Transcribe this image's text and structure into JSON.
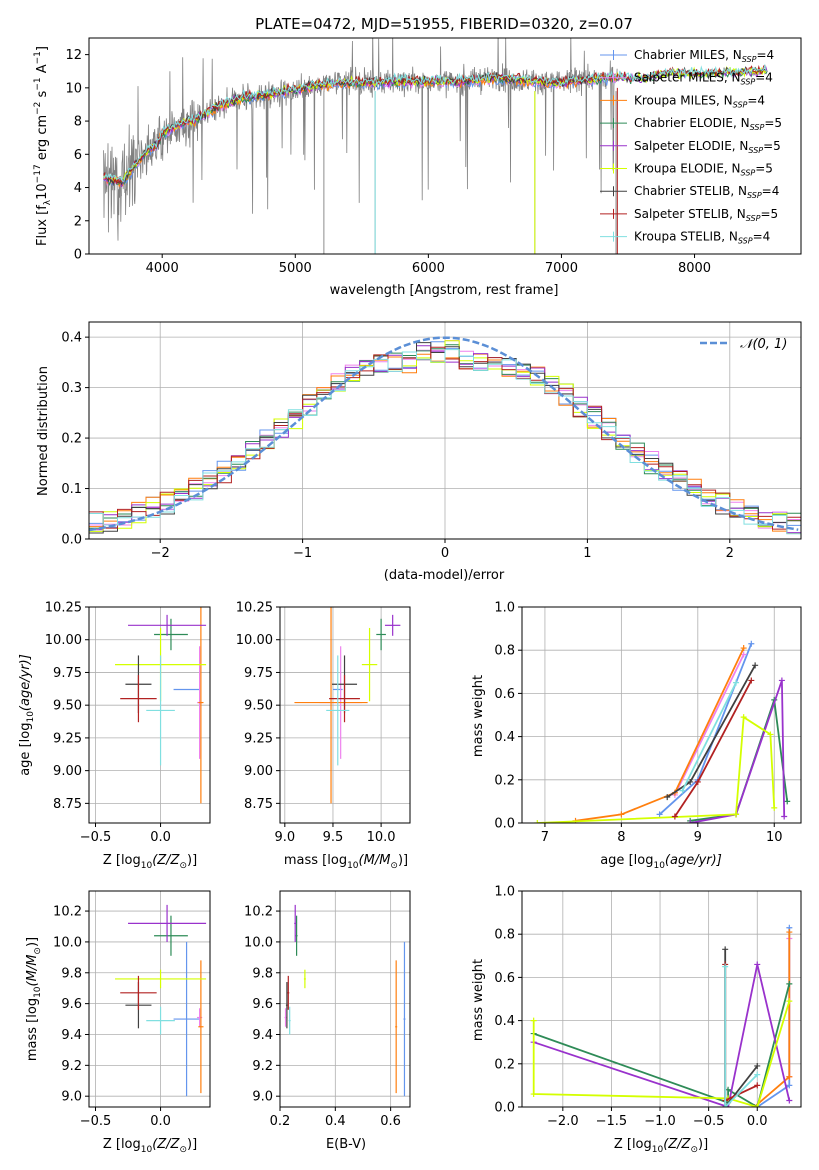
{
  "title": "PLATE=0472, MJD=51955, FIBERID=0320, z=0.07",
  "colors": {
    "chab_miles": "#6495ed",
    "salp_miles": "#ee82ee",
    "krou_miles": "#ff7f0e",
    "chab_elodie": "#2e8b57",
    "salp_elodie": "#9932cc",
    "krou_elodie": "#d4ff00",
    "chab_stelib": "#404040",
    "salp_stelib": "#b22222",
    "krou_stelib": "#80dfe0",
    "data": "#808080",
    "normal": "#5b8fd6"
  },
  "legend_spectrum": [
    {
      "key": "chab_miles",
      "label": "Chabrier MILES, N",
      "sub": "SSP",
      "tail": "=4"
    },
    {
      "key": "salp_miles",
      "label": "Salpeter MILES, N",
      "sub": "SSP",
      "tail": "=4"
    },
    {
      "key": "krou_miles",
      "label": "Kroupa MILES, N",
      "sub": "SSP",
      "tail": "=4"
    },
    {
      "key": "chab_elodie",
      "label": "Chabrier ELODIE, N",
      "sub": "SSP",
      "tail": "=5"
    },
    {
      "key": "salp_elodie",
      "label": "Salpeter ELODIE, N",
      "sub": "SSP",
      "tail": "=5"
    },
    {
      "key": "krou_elodie",
      "label": "Kroupa ELODIE, N",
      "sub": "SSP",
      "tail": "=5"
    },
    {
      "key": "chab_stelib",
      "label": "Chabrier STELIB, N",
      "sub": "SSP",
      "tail": "=4"
    },
    {
      "key": "salp_stelib",
      "label": "Salpeter STELIB, N",
      "sub": "SSP",
      "tail": "=5"
    },
    {
      "key": "krou_stelib",
      "label": "Kroupa STELIB, N",
      "sub": "SSP",
      "tail": "=4"
    }
  ],
  "chart_data": [
    {
      "id": "spectrum",
      "type": "line",
      "title": "PLATE=0472, MJD=51955, FIBERID=0320, z=0.07",
      "xlabel": "wavelength [Angstrom, rest frame]",
      "ylabel": "Flux [f",
      "ylabel_parts": [
        "Flux [f",
        "λ",
        "10",
        "−17",
        " erg cm",
        "−2",
        " s",
        "−1",
        " A",
        "−1",
        "]"
      ],
      "xlim": [
        3450,
        8800
      ],
      "ylim": [
        0,
        13
      ],
      "xticks": [
        4000,
        5000,
        6000,
        7000,
        8000
      ],
      "yticks": [
        0,
        2,
        4,
        6,
        8,
        10,
        12
      ],
      "continuum": [
        [
          3560,
          4.6
        ],
        [
          3700,
          4.3
        ],
        [
          3800,
          5.4
        ],
        [
          3900,
          6.3
        ],
        [
          3960,
          6.5
        ],
        [
          4000,
          7.3
        ],
        [
          4100,
          7.7
        ],
        [
          4250,
          8.1
        ],
        [
          4400,
          8.8
        ],
        [
          4600,
          9.4
        ],
        [
          4800,
          9.6
        ],
        [
          5000,
          9.9
        ],
        [
          5200,
          10.2
        ],
        [
          5400,
          10.3
        ],
        [
          5600,
          10.3
        ],
        [
          5800,
          10.4
        ],
        [
          6000,
          10.4
        ],
        [
          6200,
          10.35
        ],
        [
          6500,
          10.6
        ],
        [
          6800,
          10.4
        ],
        [
          7000,
          10.3
        ],
        [
          7200,
          10.5
        ],
        [
          7400,
          10.6
        ],
        [
          7600,
          10.5
        ],
        [
          7800,
          10.9
        ],
        [
          8000,
          10.8
        ],
        [
          8200,
          10.9
        ],
        [
          8400,
          10.9
        ],
        [
          8500,
          11.0
        ]
      ],
      "data_range": [
        3560,
        7420
      ],
      "grid": false,
      "legend_position": "right"
    },
    {
      "id": "residuals",
      "type": "line",
      "xlabel": "(data-model)/error",
      "ylabel": "Normed distribution",
      "xlim": [
        -2.5,
        2.5
      ],
      "ylim": [
        0,
        0.43
      ],
      "xticks": [
        -2,
        -1,
        0,
        1,
        2
      ],
      "yticks": [
        0.0,
        0.1,
        0.2,
        0.3,
        0.4
      ],
      "normal_legend": "𝒩(0, 1)",
      "bin_width": 0.1,
      "grid": true,
      "legend_position": "top-right"
    },
    {
      "id": "age_vs_z",
      "type": "scatter",
      "xlabel": "Z [log",
      "xlabel_parts": [
        "Z [log",
        "10",
        "(Z/Z",
        "⊙",
        ")]"
      ],
      "ylabel_parts": [
        "age  [log",
        "10",
        "(age/yr)]"
      ],
      "xlim": [
        -0.55,
        0.38
      ],
      "ylim": [
        8.6,
        10.25
      ],
      "xticks": [
        -0.5,
        0.0
      ],
      "yticks": [
        8.75,
        9.0,
        9.25,
        9.5,
        9.75,
        10.0,
        10.25
      ],
      "grid": true
    },
    {
      "id": "age_vs_mass",
      "type": "scatter",
      "xlabel_parts": [
        "mass [log",
        "10",
        "(M/M",
        "⊙",
        ")]"
      ],
      "xlim": [
        8.95,
        10.3
      ],
      "ylim": [
        8.6,
        10.25
      ],
      "xticks": [
        9.0,
        9.5,
        10.0
      ],
      "yticks": [
        8.75,
        9.0,
        9.25,
        9.5,
        9.75,
        10.0,
        10.25
      ],
      "grid": true
    },
    {
      "id": "weight_vs_age",
      "type": "line",
      "xlabel_parts": [
        "age  [log",
        "10",
        "(age/yr)]"
      ],
      "ylabel": "mass weight",
      "xlim": [
        6.7,
        10.35
      ],
      "ylim": [
        0,
        1.0
      ],
      "xticks": [
        7,
        8,
        9,
        10
      ],
      "yticks": [
        0.0,
        0.2,
        0.4,
        0.6,
        0.8,
        1.0
      ],
      "grid": true
    },
    {
      "id": "mass_vs_z",
      "type": "scatter",
      "xlabel_parts": [
        "Z [log",
        "10",
        "(Z/Z",
        "⊙",
        ")]"
      ],
      "ylabel_parts": [
        "mass [log",
        "10",
        "(M/M",
        "⊙",
        ")]"
      ],
      "xlim": [
        -0.55,
        0.38
      ],
      "ylim": [
        8.93,
        10.33
      ],
      "xticks": [
        -0.5,
        0.0
      ],
      "yticks": [
        9.0,
        9.2,
        9.4,
        9.6,
        9.8,
        10.0,
        10.2
      ],
      "grid": true
    },
    {
      "id": "mass_vs_ebv",
      "type": "scatter",
      "xlabel": "E(B-V)",
      "xlim": [
        0.2,
        0.67
      ],
      "ylim": [
        8.93,
        10.33
      ],
      "xticks": [
        0.2,
        0.4,
        0.6
      ],
      "yticks": [
        9.0,
        9.2,
        9.4,
        9.6,
        9.8,
        10.0,
        10.2
      ],
      "grid": true
    },
    {
      "id": "weight_vs_z",
      "type": "line",
      "xlabel_parts": [
        "Z [log",
        "10",
        "(Z/Z",
        "⊙",
        ")]"
      ],
      "ylabel": "mass weight",
      "xlim": [
        -2.42,
        0.45
      ],
      "ylim": [
        0,
        1.0
      ],
      "xticks": [
        -2.0,
        -1.5,
        -1.0,
        -0.5,
        0.0
      ],
      "yticks": [
        0.0,
        0.2,
        0.4,
        0.6,
        0.8,
        1.0
      ],
      "grid": true
    }
  ],
  "models": {
    "chab_miles": {
      "Z": [
        0.13,
        0.22
      ],
      "age": [
        9.62,
        0.0
      ],
      "mass": [
        9.5,
        0.0
      ],
      "mass_v": [
        9.51,
        0.48
      ],
      "ebv": [
        0.65,
        0.62,
        0.65
      ],
      "w_age": [
        [
          8.6,
          0.13
        ],
        [
          9.05,
          0.1
        ],
        [
          9.7,
          0.83
        ]
      ],
      "w_z": [
        [
          0.0,
          0.0
        ],
        [
          0.33,
          0.1
        ],
        [
          0.33,
          0.83
        ]
      ],
      "mass_err": [
        9.0,
        10.05
      ]
    },
    "salp_miles": {
      "Z": [
        0.12,
        0.2
      ],
      "age": [
        9.55,
        0.5
      ],
      "mass": [
        9.58,
        0.32
      ],
      "mass_v": [
        9.6,
        0.05
      ],
      "ebv": [
        0.22,
        9.4,
        9.6
      ],
      "w_age": [
        [
          8.7,
          0.14
        ],
        [
          9.6,
          0.78
        ]
      ],
      "w_z": [
        [
          0.33,
          0.14
        ],
        [
          0.33,
          0.78
        ]
      ],
      "mass_err": [
        9.4,
        9.6
      ]
    },
    "krou_miles": {
      "Z": [
        0.32,
        0.28
      ],
      "age": [
        9.51,
        0.0
      ],
      "mass": [
        9.45,
        0.15
      ],
      "mass_v": [
        9.45,
        0.0
      ],
      "ebv": [
        0.62,
        9.0,
        9.88
      ],
      "w_age": [
        [
          7.5,
          0.01
        ],
        [
          8.7,
          0.14
        ],
        [
          9.6,
          0.81
        ]
      ],
      "w_z": [
        [
          -0.03,
          0.0
        ],
        [
          0.33,
          0.14
        ],
        [
          0.33,
          0.81
        ]
      ],
      "mass_err": [
        9.0,
        9.88
      ]
    }
  }
}
